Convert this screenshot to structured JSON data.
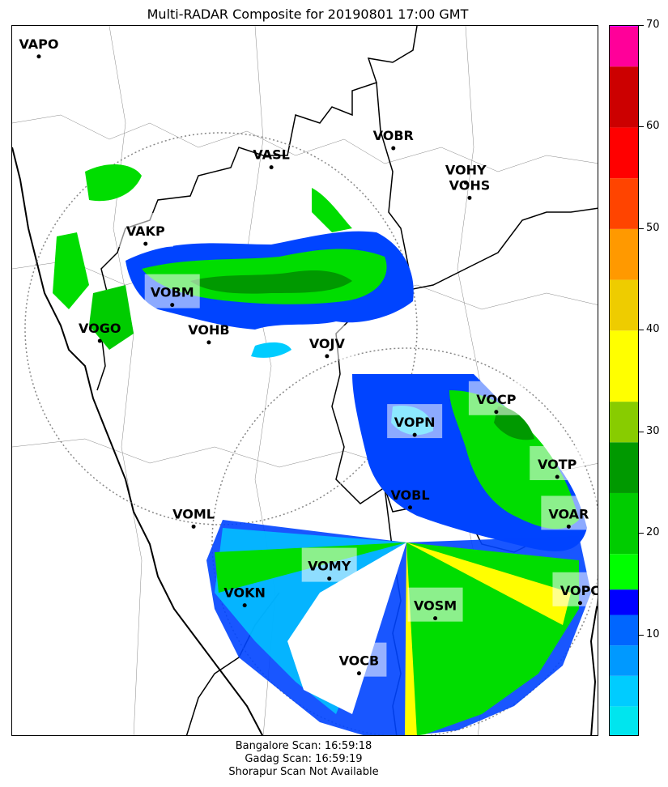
{
  "title": "Multi-RADAR Composite for 20190801 17:00 GMT",
  "footer": {
    "line1": "Bangalore Scan: 16:59:18",
    "line2": "Gadag Scan: 16:59:19",
    "line3": "Shorapur Scan Not Available"
  },
  "stations": [
    {
      "code": "VAPO",
      "lon": 72.85,
      "lat": 19.1,
      "highlight": false
    },
    {
      "code": "VASL",
      "lon": 75.9,
      "lat": 17.65,
      "highlight": false
    },
    {
      "code": "VOBR",
      "lon": 77.5,
      "lat": 17.9,
      "highlight": false
    },
    {
      "code": "VOHY",
      "lon": 78.45,
      "lat": 17.45,
      "highlight": false
    },
    {
      "code": "VOHS",
      "lon": 78.5,
      "lat": 17.25,
      "highlight": false
    },
    {
      "code": "VAKP",
      "lon": 74.25,
      "lat": 16.65,
      "highlight": true
    },
    {
      "code": "VOBM",
      "lon": 74.6,
      "lat": 15.85,
      "highlight": true
    },
    {
      "code": "VOGO",
      "lon": 73.65,
      "lat": 15.38,
      "highlight": false
    },
    {
      "code": "VOHB",
      "lon": 75.08,
      "lat": 15.36,
      "highlight": false
    },
    {
      "code": "VOJV",
      "lon": 76.63,
      "lat": 15.18,
      "highlight": true
    },
    {
      "code": "VOCP",
      "lon": 78.85,
      "lat": 14.45,
      "highlight": true
    },
    {
      "code": "VOPN",
      "lon": 77.78,
      "lat": 14.15,
      "highlight": true
    },
    {
      "code": "VOTP",
      "lon": 79.65,
      "lat": 13.6,
      "highlight": true
    },
    {
      "code": "VOBL",
      "lon": 77.72,
      "lat": 13.2,
      "highlight": false
    },
    {
      "code": "VOAR",
      "lon": 79.8,
      "lat": 12.95,
      "highlight": true
    },
    {
      "code": "VOML",
      "lon": 74.88,
      "lat": 12.95,
      "highlight": false
    },
    {
      "code": "VOMY",
      "lon": 76.66,
      "lat": 12.27,
      "highlight": true
    },
    {
      "code": "VOKN",
      "lon": 75.55,
      "lat": 11.92,
      "highlight": false
    },
    {
      "code": "VOPC",
      "lon": 79.95,
      "lat": 11.95,
      "highlight": true
    },
    {
      "code": "VOSM",
      "lon": 78.05,
      "lat": 11.75,
      "highlight": true
    },
    {
      "code": "VOCB",
      "lon": 77.05,
      "lat": 11.03,
      "highlight": true
    }
  ],
  "radars": [
    {
      "name": "Gadag",
      "range": "circle"
    },
    {
      "name": "Bangalore",
      "range": "circle"
    }
  ],
  "colorbar": {
    "min": 0,
    "max": 70,
    "ticks": [
      10,
      20,
      30,
      40,
      50,
      60,
      70
    ],
    "colors": [
      "#00e5ee",
      "#00ccff",
      "#0099ff",
      "#0066ff",
      "#0000ff",
      "#00ff00",
      "#00cc00",
      "#009900",
      "#88cc00",
      "#ffff00",
      "#eecc00",
      "#ff9900",
      "#ff4400",
      "#ff0000",
      "#cc0000",
      "#ff0099",
      "#ff00ff"
    ]
  },
  "colors": {
    "weak_blue": "#0044ff",
    "light_cyan": "#00ccff",
    "green": "#00dd00",
    "dark_green": "#009900",
    "yellow": "#ffff00",
    "boundary": "#000000",
    "station_box": "#bfe9ff",
    "station_box_green": "#a8f0a8"
  }
}
